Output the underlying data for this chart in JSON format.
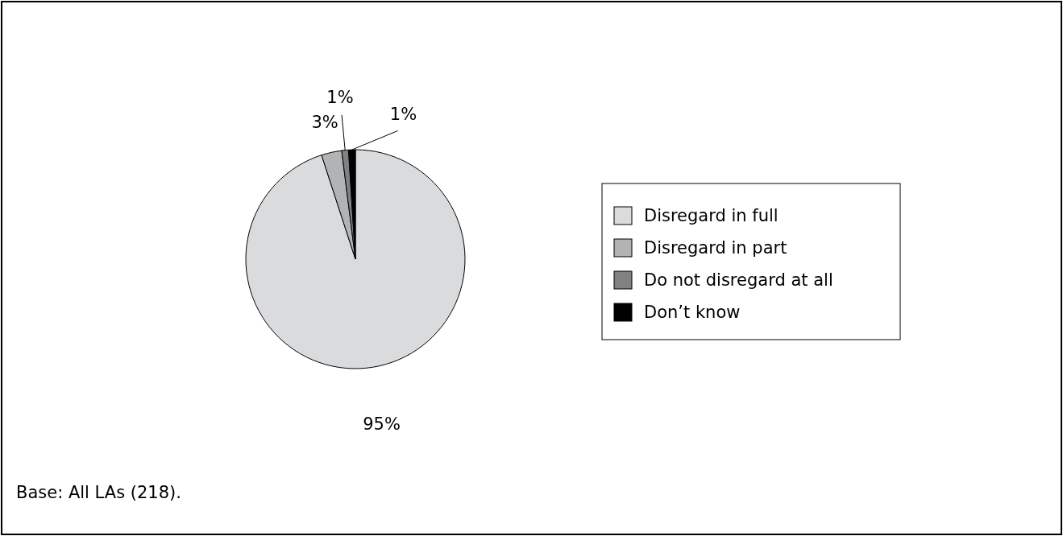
{
  "chart_data": {
    "type": "pie",
    "categories": [
      "Disregard in full",
      "Disregard in part",
      "Do not disregard at all",
      "Don’t know"
    ],
    "values": [
      95,
      3,
      1,
      1
    ],
    "colors": [
      "#dadbdd",
      "#b2b3b5",
      "#808183",
      "#000000"
    ],
    "value_labels": [
      "95%",
      "3%",
      "1%",
      "1%"
    ],
    "legend": "right",
    "annotations": [
      "Base: All LAs (218)."
    ]
  }
}
